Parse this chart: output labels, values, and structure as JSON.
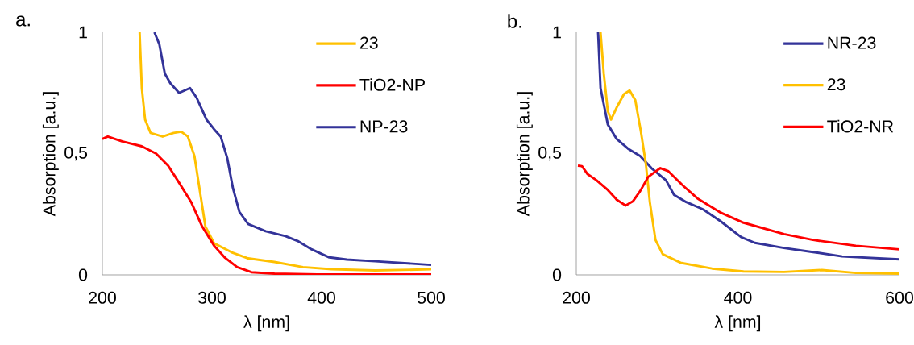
{
  "chart_data": [
    {
      "type": "line",
      "title": "a.",
      "xlabel": "λ [nm]",
      "ylabel": "Absorption [a.u.]",
      "xlim": [
        200,
        500
      ],
      "ylim": [
        0,
        1
      ],
      "xticks": [
        200,
        300,
        400,
        500
      ],
      "yticks": [
        0,
        {
          "value": 0.5,
          "label": "0,5"
        },
        1
      ],
      "grid": false,
      "legend": "top right",
      "series": [
        {
          "name": "23",
          "color": "#ffc000",
          "x": [
            234,
            236,
            239,
            244,
            255,
            265,
            272,
            278,
            284,
            289,
            294,
            302,
            318,
            333,
            357,
            383,
            409,
            449,
            500
          ],
          "values": [
            1,
            0.77,
            0.64,
            0.585,
            0.57,
            0.585,
            0.59,
            0.57,
            0.49,
            0.345,
            0.2,
            0.13,
            0.093,
            0.068,
            0.053,
            0.032,
            0.023,
            0.018,
            0.023
          ]
        },
        {
          "name": "TiO2-NP",
          "color": "#ff0000",
          "x": [
            200,
            205,
            218,
            236,
            249,
            260,
            270,
            281,
            291,
            302,
            312,
            323,
            336,
            357,
            396,
            500
          ],
          "values": [
            0.56,
            0.57,
            0.55,
            0.53,
            0.5,
            0.45,
            0.38,
            0.3,
            0.2,
            0.12,
            0.07,
            0.032,
            0.011,
            0.005,
            0.002,
            0.002
          ]
        },
        {
          "name": "NP-23",
          "color": "#333399",
          "x": [
            247.5,
            252,
            257,
            262,
            270,
            280,
            286,
            295,
            302,
            308,
            314,
            319,
            325,
            333,
            349,
            367,
            378,
            391,
            407,
            423,
            449,
            500
          ],
          "values": [
            1,
            0.95,
            0.83,
            0.79,
            0.75,
            0.77,
            0.73,
            0.64,
            0.6,
            0.57,
            0.48,
            0.36,
            0.26,
            0.21,
            0.18,
            0.16,
            0.14,
            0.105,
            0.072,
            0.063,
            0.056,
            0.041
          ]
        }
      ]
    },
    {
      "type": "line",
      "title": "b.",
      "xlabel": "λ [nm]",
      "ylabel": "Absorption [a.u.]",
      "xlim": [
        200,
        600
      ],
      "ylim": [
        0,
        1
      ],
      "xticks": [
        200,
        400,
        600
      ],
      "yticks": [
        0,
        {
          "value": 0.5,
          "label": "0,5"
        },
        1
      ],
      "grid": false,
      "legend": "top right",
      "series": [
        {
          "name": "NR-23",
          "color": "#333399",
          "x": [
            227,
            230,
            239,
            250,
            264,
            279,
            293,
            311,
            321,
            336,
            357,
            379,
            404,
            421,
            457,
            493,
            529,
            600
          ],
          "values": [
            1,
            0.77,
            0.62,
            0.56,
            0.52,
            0.49,
            0.44,
            0.39,
            0.33,
            0.3,
            0.27,
            0.22,
            0.156,
            0.132,
            0.111,
            0.094,
            0.076,
            0.064
          ]
        },
        {
          "name": "23",
          "color": "#ffc000",
          "x": [
            230,
            234,
            239,
            243,
            250,
            259,
            266,
            273,
            280,
            286,
            291,
            298,
            307,
            329,
            368,
            407,
            457,
            504,
            546,
            600
          ],
          "values": [
            1,
            0.83,
            0.675,
            0.64,
            0.69,
            0.745,
            0.76,
            0.72,
            0.59,
            0.46,
            0.3,
            0.144,
            0.085,
            0.05,
            0.026,
            0.014,
            0.012,
            0.02,
            0.008,
            0.005
          ]
        },
        {
          "name": "TiO2-NR",
          "color": "#ff0000",
          "x": [
            202,
            207,
            214,
            225,
            239,
            250,
            261,
            270,
            279,
            289,
            304,
            314,
            332,
            350,
            379,
            407,
            457,
            493,
            546,
            600
          ],
          "values": [
            0.45,
            0.448,
            0.415,
            0.39,
            0.35,
            0.31,
            0.286,
            0.303,
            0.345,
            0.404,
            0.44,
            0.427,
            0.368,
            0.315,
            0.256,
            0.215,
            0.168,
            0.144,
            0.12,
            0.105
          ]
        }
      ]
    }
  ]
}
